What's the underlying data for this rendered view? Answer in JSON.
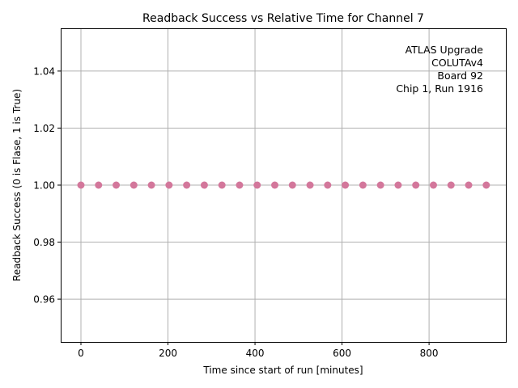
{
  "chart_data": {
    "type": "scatter",
    "title": "Readback Success vs Relative Time for Channel 7",
    "xlabel": "Time since start of run [minutes]",
    "ylabel": "Readback Success (0 is Flase, 1 is True)",
    "xlim": [
      -46.5,
      976.5
    ],
    "ylim": [
      0.945,
      1.055
    ],
    "xticks": [
      0,
      200,
      400,
      600,
      800
    ],
    "yticks": [
      0.96,
      0.98,
      1.0,
      1.02,
      1.04
    ],
    "ytick_labels": [
      "0.96",
      "0.98",
      "1.00",
      "1.02",
      "1.04"
    ],
    "grid": true,
    "marker_color": "#d3779b",
    "series": [
      {
        "x": [
          0,
          40.5,
          81,
          121.5,
          162,
          202.5,
          243,
          283.5,
          324,
          364.5,
          405,
          445.5,
          486,
          526.5,
          567,
          607.5,
          648,
          688.5,
          729,
          769.5,
          810,
          850.5,
          891,
          931.5
        ],
        "y": [
          1,
          1,
          1,
          1,
          1,
          1,
          1,
          1,
          1,
          1,
          1,
          1,
          1,
          1,
          1,
          1,
          1,
          1,
          1,
          1,
          1,
          1,
          1,
          1
        ]
      }
    ],
    "annotations": [
      "ATLAS Upgrade",
      "COLUTAv4",
      "Board 92",
      "Chip 1, Run 1916"
    ]
  }
}
